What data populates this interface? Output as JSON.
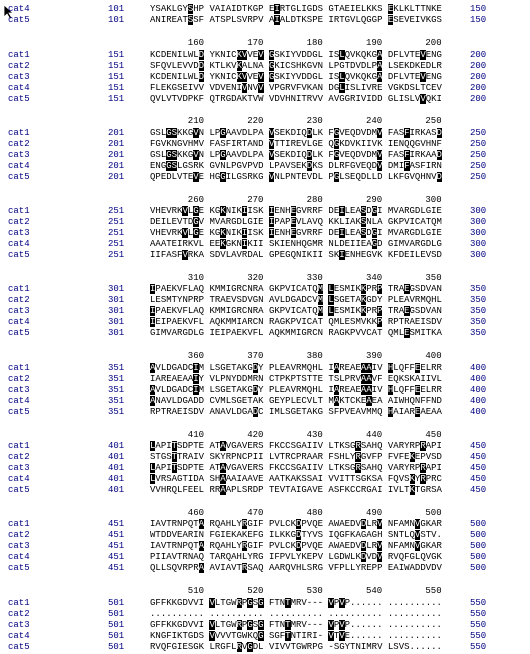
{
  "top_rows": [
    {
      "name": "cat4",
      "start": 101,
      "seq": "YSAKLGYSHP VAIAIDTKGP EIRTGLIGDS GTAEIELKKS EKLKLTTNKE",
      "end": 150
    },
    {
      "name": "cat5",
      "start": 101,
      "seq": "ANIREATSSF ATSPLSVRPV AIALDTKSPE IRTGVLQGGP ESEVEIVKGS",
      "end": 150
    }
  ],
  "blocks": [
    {
      "ruler": [
        160,
        170,
        180,
        190,
        200
      ],
      "rows": [
        {
          "name": "cat1",
          "start": 151,
          "seq": "KCDENILWLD YKNICKVVEV GSKIYVDDGL ISLQVKQKGA DFLVTEVENG",
          "end": 200
        },
        {
          "name": "cat2",
          "start": 151,
          "seq": "SFQVLEVVDD KTLKVKALNA GKICSHKGVN LPGTDVDLPA LSEKDKEDLR",
          "end": 200
        },
        {
          "name": "cat3",
          "start": 151,
          "seq": "KCDENILWLD YKNICKVVEV GSKIYVDDGL ISLQVKQKGA DFLVTEVENG",
          "end": 200
        },
        {
          "name": "cat4",
          "start": 151,
          "seq": "FLEKGSEIVV VDVENIVNVV VPGRVFVKAN DGLISLIVRE VGKDSLTCEV",
          "end": 200
        },
        {
          "name": "cat5",
          "start": 151,
          "seq": "QVLVTVDPKF QTRGDAKTVW VDVHNITRVV AVGGRIVIDD GLISLVVQKI",
          "end": 200
        }
      ]
    },
    {
      "ruler": [
        210,
        220,
        230,
        240,
        250
      ],
      "rows": [
        {
          "name": "cat1",
          "start": 201,
          "seq": "GSLGSKKGVN LPGAAVDLPA VSEKDIQDLK FGVEQDVDMV FASFIRKASD",
          "end": 250
        },
        {
          "name": "cat2",
          "start": 201,
          "seq": "FGVKNGVHMV FASFIRTAND VTTIREVLGE QGKDVKIIVK IENQQGVHNF",
          "end": 250
        },
        {
          "name": "cat3",
          "start": 201,
          "seq": "GSLGSKKGVN LPGAAVDLPA VSEKDIQDLK FGVEQDVDMV FASFIRKAAD",
          "end": 250
        },
        {
          "name": "cat4",
          "start": 201,
          "seq": "ENGGSLGSRK GVNLPGVPVD LPAVSEKDKS DLRFGVEQDV DMIFASFIRN",
          "end": 250
        },
        {
          "name": "cat5",
          "start": 201,
          "seq": "QPEDLVTEVE HGGILGSRKG VNLPNTEVDL PGLSEQDLLD LKFGVQHNVD",
          "end": 250
        }
      ]
    },
    {
      "ruler": [
        260,
        270,
        280,
        290,
        300
      ],
      "rows": [
        {
          "name": "cat1",
          "start": 251,
          "seq": "VHEVRKVLGE KGKNIKIISK IENHEGVRRF DEILEASDGI MVARGDLGIE",
          "end": 300
        },
        {
          "name": "cat2",
          "start": 251,
          "seq": "DEILEVTDGV MVARGDLGIE IPAPEVLAVQ KKLIAKSNLA GKPVICATQM",
          "end": 300
        },
        {
          "name": "cat3",
          "start": 251,
          "seq": "VHEVRKVLGE KGKNIKIISK IENHEGVRRF DEILEASDGI MVARGDLGIE",
          "end": 300
        },
        {
          "name": "cat4",
          "start": 251,
          "seq": "AAATEIRKVL EEKGKNIKII SKIENHQGMR NLDEIIEAGD GIMVARGDLG",
          "end": 300
        },
        {
          "name": "cat5",
          "start": 251,
          "seq": "IIFASFVRKA SDVLAVRDAL GPEGQNIKII SKIENHEGVK KFDEILEVSD",
          "end": 300
        }
      ]
    },
    {
      "ruler": [
        310,
        320,
        330,
        340,
        350
      ],
      "rows": [
        {
          "name": "cat1",
          "start": 301,
          "seq": "IPAEKVFLAQ KMMIGRCNRA GKPVICATQM LESMIKKPRP TRAEGSDVAN",
          "end": 350
        },
        {
          "name": "cat2",
          "start": 301,
          "seq": "LESMTYNPRP TRAEVSDVGN AVLDGADCVM LSGETAKGDY PLEAVRMQHL",
          "end": 350
        },
        {
          "name": "cat3",
          "start": 301,
          "seq": "IPAEKVFLAQ KMMIGRCNRA GKPVICATQM LESMIKKPRP TRAEGSDVAN",
          "end": 350
        },
        {
          "name": "cat4",
          "start": 301,
          "seq": "IEIPAEKVFL AQKMMIARCN RAGKPVICAT QMLESMVKKP RPTRAEISDV",
          "end": 350
        },
        {
          "name": "cat5",
          "start": 301,
          "seq": "GIMVARGDLG IEIPAEKVFL AQKMMIGRCN RAGKPVVCAT QMLESMITKA",
          "end": 350
        }
      ]
    },
    {
      "ruler": [
        360,
        370,
        380,
        390,
        400
      ],
      "rows": [
        {
          "name": "cat1",
          "start": 351,
          "seq": "AVLDGADCIM LSGETAKGDY PLEAVRMQHL IAREAEAAIV HLQFFEELRR",
          "end": 400
        },
        {
          "name": "cat2",
          "start": 351,
          "seq": "IAREAEAAIY VLPNYDDMRN CTPKPTSTTE TSLPRVAAVF EQKSKAIIVL",
          "end": 400
        },
        {
          "name": "cat3",
          "start": 351,
          "seq": "AVLDGADCIM LSGETAKGDY PLEAVRMQHL IAREAEAAIV HLQFFEELRR",
          "end": 400
        },
        {
          "name": "cat4",
          "start": 351,
          "seq": "ANAVLDGADD CVMLSGETAK GEYPLECVLT MAKTCKEAEA AIWHQNFFND",
          "end": 400
        },
        {
          "name": "cat5",
          "start": 351,
          "seq": "RPTRAEISDV ANAVLDGADC IMLSGETAKG SFPVEAVMMQ HAIAREAEAA",
          "end": 400
        }
      ]
    },
    {
      "ruler": [
        410,
        420,
        430,
        440,
        450
      ],
      "rows": [
        {
          "name": "cat1",
          "start": 401,
          "seq": "LAPITSDPTE ATAVGAVERS FKCCSGAIIV LTKSGRSAHQ VARYRPRAPI",
          "end": 450
        },
        {
          "name": "cat2",
          "start": 401,
          "seq": "STGSTTRAIV SKYRPNCPII LVTRCPRAAR FSHLYRGVFP FVFEKEPVSD",
          "end": 450
        },
        {
          "name": "cat3",
          "start": 401,
          "seq": "LAPITSDPTE ATAVGAVERS FKCCSGAIIV LTKSGRSAHQ VARYRPRAPI",
          "end": 450
        },
        {
          "name": "cat4",
          "start": 401,
          "seq": "LVRSAGTIDA SHAAAIAAVE AATKAKSSAI VVITTSGKSA FQVSKYRPRC",
          "end": 450
        },
        {
          "name": "cat5",
          "start": 401,
          "seq": "VVHRQLFEEL RRAAPLSRDP TEVTAIGAVE ASFKCCRGAI IVLTKTGRSA",
          "end": 450
        }
      ]
    },
    {
      "ruler": [
        460,
        470,
        480,
        490,
        500
      ],
      "rows": [
        {
          "name": "cat1",
          "start": 451,
          "seq": "IAVTRNPQTA RQAHLYRGIF PVLCKDPVQE AWAEDVDLRV NFAMNVGKAR",
          "end": 500
        },
        {
          "name": "cat2",
          "start": 451,
          "seq": "WTDDVEARIN FGIEKAKEFG ILKKGDTYVS IQGFKAGAGH SNTLQVSTV.",
          "end": 500
        },
        {
          "name": "cat3",
          "start": 451,
          "seq": "IAVTRNPQTA RQAHLYRGIF PVLCKDPVQE AWAEDVDLRV NFAMNVGKAR",
          "end": 500
        },
        {
          "name": "cat4",
          "start": 451,
          "seq": "PIIAVTRNAQ TARQAHLYRG IFPVLYKEPV LGDWLKDVDV RVQFGLQVGK",
          "end": 500
        },
        {
          "name": "cat5",
          "start": 451,
          "seq": "QLLSQVRPRA AVIAVTRSAQ AARQVHLSRG VFPLLYREPP EAIWADDVDV",
          "end": 500
        }
      ]
    },
    {
      "ruler": [
        510,
        520,
        530,
        540,
        550
      ],
      "rows": [
        {
          "name": "cat1",
          "start": 501,
          "seq": "GFFKKGDVVI VLTGWRPGSG FTNTMRV--- VPVP...... ..........",
          "end": 550
        },
        {
          "name": "cat2",
          "start": 501,
          "seq": ".......... .......... .......... .......... ..........",
          "end": 550
        },
        {
          "name": "cat3",
          "start": 501,
          "seq": "GFFKKGDVVI VLTGWRPGSG FTNTMRV--- VPVP...... ..........",
          "end": 550
        },
        {
          "name": "cat4",
          "start": 501,
          "seq": "KNGFIKTGDS VVVVTGWKQG SGFTNTIRI- VTVE...... ..........",
          "end": 550
        },
        {
          "name": "cat5",
          "start": 501,
          "seq": "RVQFGIESGK LRGFLRVGDL VIVVTGWRPG -SGYTNIMRV LSVS......",
          "end": 550
        }
      ]
    }
  ]
}
